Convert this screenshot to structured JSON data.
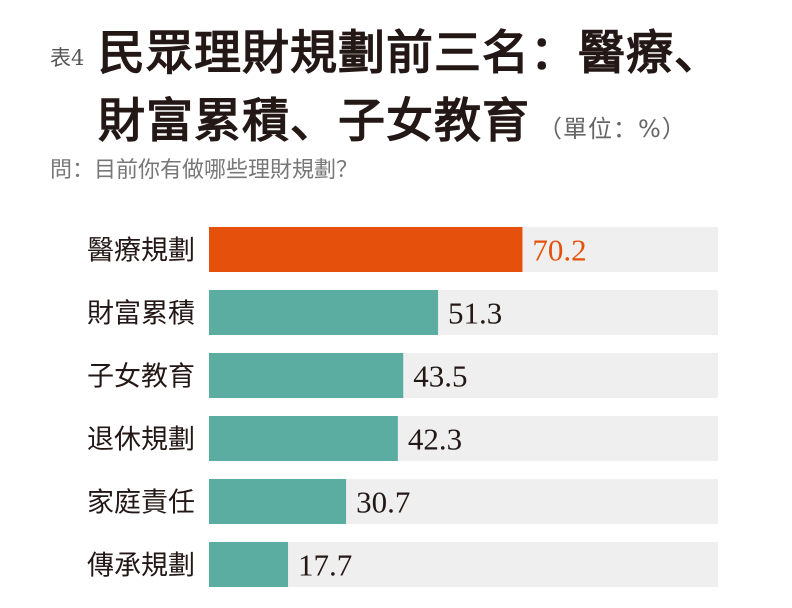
{
  "title": {
    "tag": "表4",
    "line1": "民眾理財規劃前三名：醫療、",
    "line2": "財富累積、子女教育",
    "unit": "（單位：%）"
  },
  "subtitle": "問：目前你有做哪些理財規劃？",
  "colors": {
    "highlight": "#e5500c",
    "bar": "#5baca1",
    "track": "#efefef",
    "highlight_label": "#e5500c",
    "label": "#231815"
  },
  "chart_data": {
    "type": "bar",
    "orientation": "horizontal",
    "categories": [
      "醫療規劃",
      "財富累積",
      "子女教育",
      "退休規劃",
      "家庭責任",
      "傳承規劃"
    ],
    "values": [
      70.2,
      51.3,
      43.5,
      42.3,
      30.7,
      17.7
    ],
    "value_labels": [
      "70.2",
      "51.3",
      "43.5",
      "42.3",
      "30.7",
      "17.7"
    ],
    "highlight_index": 0,
    "xlim": [
      0,
      114
    ],
    "grid": false,
    "legend": "none"
  }
}
